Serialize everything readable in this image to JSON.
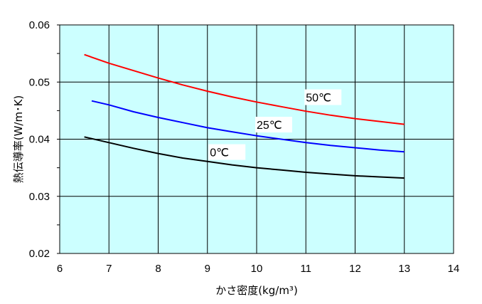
{
  "chart_data": {
    "type": "line",
    "xlabel": "かさ密度(kg/m³)",
    "ylabel": "熱伝導率(W/m･K)",
    "xlim": [
      6,
      14
    ],
    "ylim": [
      0.02,
      0.06
    ],
    "x_ticks": [
      "6",
      "7",
      "8",
      "9",
      "10",
      "11",
      "12",
      "13",
      "14"
    ],
    "y_ticks": [
      "0.02",
      "0.03",
      "0.04",
      "0.05",
      "0.06"
    ],
    "grid": true,
    "plot_background": "#ccffff",
    "series": [
      {
        "name": "50℃",
        "color": "#ff0000",
        "x": [
          6.5,
          7,
          7.5,
          8,
          8.5,
          9,
          9.5,
          10,
          10.5,
          11,
          11.5,
          12,
          12.5,
          13
        ],
        "y": [
          0.0548,
          0.0533,
          0.052,
          0.0507,
          0.0495,
          0.0484,
          0.0474,
          0.0465,
          0.0457,
          0.0449,
          0.0442,
          0.0436,
          0.0431,
          0.0426
        ]
      },
      {
        "name": "25℃",
        "color": "#0000ff",
        "x": [
          6.65,
          7,
          7.5,
          8,
          8.5,
          9,
          9.5,
          10,
          10.5,
          11,
          11.5,
          12,
          12.5,
          13
        ],
        "y": [
          0.0467,
          0.046,
          0.0448,
          0.0438,
          0.0429,
          0.042,
          0.0413,
          0.0406,
          0.04,
          0.0394,
          0.0389,
          0.0385,
          0.0381,
          0.0378
        ]
      },
      {
        "name": "0℃",
        "color": "#000000",
        "x": [
          6.5,
          7,
          7.5,
          8,
          8.5,
          9,
          9.5,
          10,
          10.5,
          11,
          11.5,
          12,
          12.5,
          13
        ],
        "y": [
          0.0404,
          0.0394,
          0.0384,
          0.0375,
          0.0367,
          0.0361,
          0.0355,
          0.035,
          0.0346,
          0.0342,
          0.0339,
          0.0336,
          0.0334,
          0.0332
        ]
      }
    ],
    "annotations": [
      {
        "series": "50℃",
        "text": "50℃",
        "x": 11.0,
        "y": 0.0466
      },
      {
        "series": "25℃",
        "text": "25℃",
        "x": 10.0,
        "y": 0.0418
      },
      {
        "series": "0℃",
        "text": "0℃",
        "x": 9.05,
        "y": 0.037
      }
    ]
  }
}
